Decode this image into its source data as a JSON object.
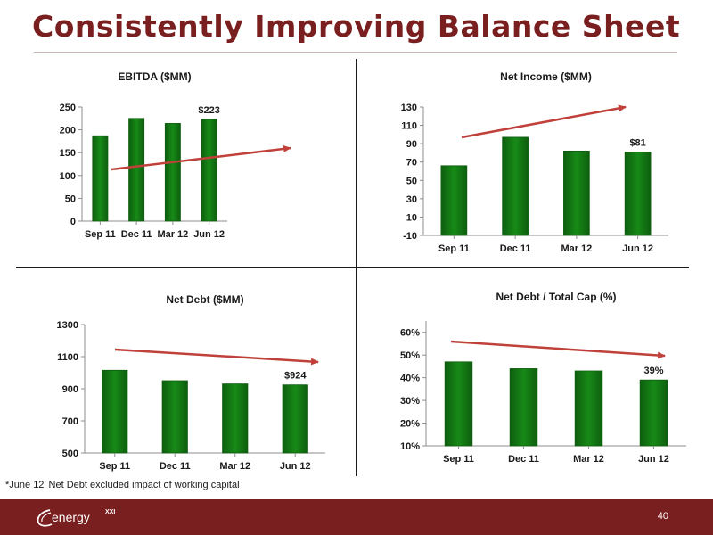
{
  "title": "Consistently Improving Balance Sheet",
  "footnote": "*June 12’ Net Debt excluded impact of working capital",
  "page_number": "40",
  "logo": {
    "text": "energy",
    "superscript": "XXI",
    "icon": "swoosh-icon"
  },
  "colors": {
    "title": "#7a1f1f",
    "footer": "#7a1f1f",
    "bar": "#178a17",
    "bar_edge": "#0e5e0e",
    "trend": "#c0403a"
  },
  "chart_data": [
    {
      "type": "bar",
      "title": "EBITDA ($MM)",
      "categories": [
        "Sep 11",
        "Dec 11",
        "Mar 12",
        "Jun 12"
      ],
      "values": [
        187,
        225,
        214,
        223
      ],
      "ylim": [
        0,
        250
      ],
      "yticks": [
        0,
        50,
        100,
        150,
        200,
        250
      ],
      "ytick_labels": [
        "0",
        "50",
        "100",
        "150",
        "200",
        "250"
      ],
      "data_labels": [
        null,
        null,
        null,
        "$223"
      ],
      "trend": "up"
    },
    {
      "type": "bar",
      "title": "Net Income ($MM)",
      "categories": [
        "Sep 11",
        "Dec 11",
        "Mar 12",
        "Jun 12"
      ],
      "values": [
        66,
        97,
        82,
        81
      ],
      "ylim": [
        -10,
        130
      ],
      "yticks": [
        -10,
        10,
        30,
        50,
        70,
        90,
        110,
        130
      ],
      "ytick_labels": [
        "-10",
        "10",
        "30",
        "50",
        "70",
        "90",
        "110",
        "130"
      ],
      "data_labels": [
        null,
        null,
        null,
        "$81"
      ],
      "trend": "up"
    },
    {
      "type": "bar",
      "title": "Net Debt ($MM)",
      "categories": [
        "Sep 11",
        "Dec 11",
        "Mar 12",
        "Jun 12"
      ],
      "values": [
        1015,
        950,
        930,
        924
      ],
      "ylim": [
        500,
        1300
      ],
      "yticks": [
        500,
        700,
        900,
        1100,
        1300
      ],
      "ytick_labels": [
        "500",
        "700",
        "900",
        "1100",
        "1300"
      ],
      "data_labels": [
        null,
        null,
        null,
        "$924"
      ],
      "trend": "down"
    },
    {
      "type": "bar",
      "title": "Net Debt / Total Cap (%)",
      "categories": [
        "Sep 11",
        "Dec 11",
        "Mar 12",
        "Jun 12"
      ],
      "values": [
        47,
        44,
        43,
        39
      ],
      "ylim": [
        10,
        65
      ],
      "yticks": [
        10,
        20,
        30,
        40,
        50,
        60
      ],
      "ytick_labels": [
        "10%",
        "20%",
        "30%",
        "40%",
        "50%",
        "60%"
      ],
      "data_labels": [
        null,
        null,
        null,
        "39%"
      ],
      "trend": "down"
    }
  ]
}
